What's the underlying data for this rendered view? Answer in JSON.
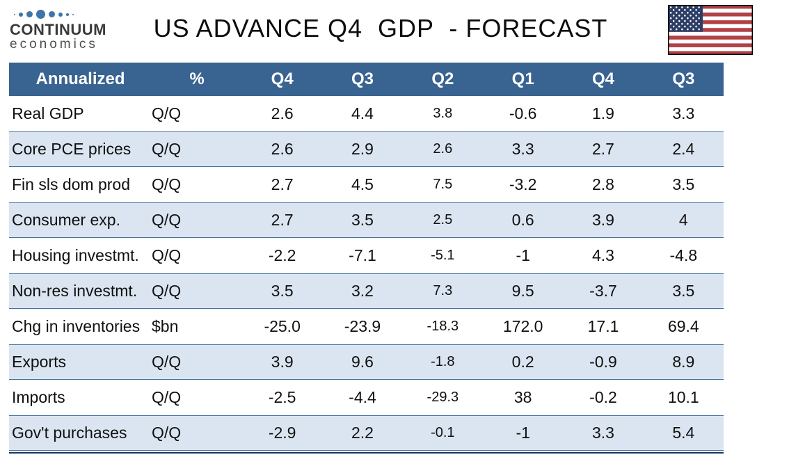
{
  "brand": {
    "name": "CONTINUUM",
    "tagline": "economics"
  },
  "title": "US ADVANCE Q4  GDP  - FORECAST",
  "flag": {
    "name": "us-flag"
  },
  "table": {
    "columns": [
      "Annualized",
      "%",
      "Q4",
      "Q3",
      "Q2",
      "Q1",
      "Q4",
      "Q3"
    ],
    "rows": [
      {
        "label": "Real GDP",
        "unit": "Q/Q",
        "values": [
          "2.6",
          "4.4",
          "3.8",
          "-0.6",
          "1.9",
          "3.3"
        ]
      },
      {
        "label": "Core PCE prices",
        "unit": "Q/Q",
        "values": [
          "2.6",
          "2.9",
          "2.6",
          "3.3",
          "2.7",
          "2.4"
        ]
      },
      {
        "label": "Fin sls dom prod",
        "unit": "Q/Q",
        "values": [
          "2.7",
          "4.5",
          "7.5",
          "-3.2",
          "2.8",
          "3.5"
        ]
      },
      {
        "label": "Consumer exp.",
        "unit": "Q/Q",
        "values": [
          "2.7",
          "3.5",
          "2.5",
          "0.6",
          "3.9",
          "4"
        ]
      },
      {
        "label": "Housing investmt.",
        "unit": "Q/Q",
        "values": [
          "-2.2",
          "-7.1",
          "-5.1",
          "-1",
          "4.3",
          "-4.8"
        ]
      },
      {
        "label": "Non-res investmt.",
        "unit": "Q/Q",
        "values": [
          "3.5",
          "3.2",
          "7.3",
          "9.5",
          "-3.7",
          "3.5"
        ]
      },
      {
        "label": "Chg in inventories",
        "unit": "$bn",
        "values": [
          "-25.0",
          "-23.9",
          "-18.3",
          "172.0",
          "17.1",
          "69.4"
        ]
      },
      {
        "label": "Exports",
        "unit": "Q/Q",
        "values": [
          "3.9",
          "9.6",
          "-1.8",
          "0.2",
          "-0.9",
          "8.9"
        ]
      },
      {
        "label": "Imports",
        "unit": "Q/Q",
        "values": [
          "-2.5",
          "-4.4",
          "-29.3",
          "38",
          "-0.2",
          "10.1"
        ]
      },
      {
        "label": "Gov't purchases",
        "unit": "Q/Q",
        "values": [
          "-2.9",
          "2.2",
          "-0.1",
          "-1",
          "3.3",
          "5.4"
        ]
      }
    ]
  },
  "colors": {
    "header_bg": "#396390",
    "row_shaded_bg": "#dbe5f1",
    "row_border": "#44719f",
    "bottom_rule": "#17375e",
    "logo_blue": "#3d74aa",
    "flag_red": "#b24146",
    "flag_navy": "#2c3e66"
  },
  "chart_data": {
    "type": "table",
    "title": "US ADVANCE Q4  GDP  - FORECAST",
    "columns": [
      "Annualized",
      "%",
      "Q4",
      "Q3",
      "Q2",
      "Q1",
      "Q4",
      "Q3"
    ],
    "rows": [
      [
        "Real GDP",
        "Q/Q",
        2.6,
        4.4,
        3.8,
        -0.6,
        1.9,
        3.3
      ],
      [
        "Core PCE prices",
        "Q/Q",
        2.6,
        2.9,
        2.6,
        3.3,
        2.7,
        2.4
      ],
      [
        "Fin sls dom prod",
        "Q/Q",
        2.7,
        4.5,
        7.5,
        -3.2,
        2.8,
        3.5
      ],
      [
        "Consumer exp.",
        "Q/Q",
        2.7,
        3.5,
        2.5,
        0.6,
        3.9,
        4
      ],
      [
        "Housing investmt.",
        "Q/Q",
        -2.2,
        -7.1,
        -5.1,
        -1,
        4.3,
        -4.8
      ],
      [
        "Non-res investmt.",
        "Q/Q",
        3.5,
        3.2,
        7.3,
        9.5,
        -3.7,
        3.5
      ],
      [
        "Chg in inventories",
        "$bn",
        -25.0,
        -23.9,
        -18.3,
        172.0,
        17.1,
        69.4
      ],
      [
        "Exports",
        "Q/Q",
        3.9,
        9.6,
        -1.8,
        0.2,
        -0.9,
        8.9
      ],
      [
        "Imports",
        "Q/Q",
        -2.5,
        -4.4,
        -29.3,
        38,
        -0.2,
        10.1
      ],
      [
        "Gov't purchases",
        "Q/Q",
        -2.9,
        2.2,
        -0.1,
        -1,
        3.3,
        5.4
      ]
    ]
  }
}
